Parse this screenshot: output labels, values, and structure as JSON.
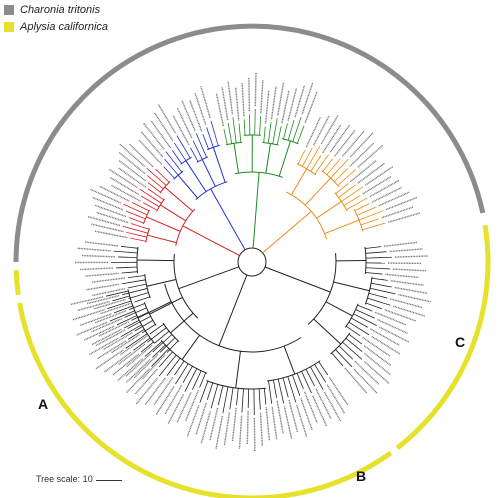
{
  "legend": [
    {
      "label": "Charonia tritonis",
      "color": "#8c8c8c"
    },
    {
      "label": "Aplysia californica",
      "color": "#e6e12a"
    }
  ],
  "clades": [
    {
      "label": "A",
      "color": "#111111"
    },
    {
      "label": "B",
      "color": "#111111"
    },
    {
      "label": "C",
      "color": "#111111"
    }
  ],
  "subclade_colors": [
    "#d42020",
    "#2030c8",
    "#1f8a1f",
    "#ee8a10"
  ],
  "scale": {
    "label": "Tree scale: 10"
  }
}
